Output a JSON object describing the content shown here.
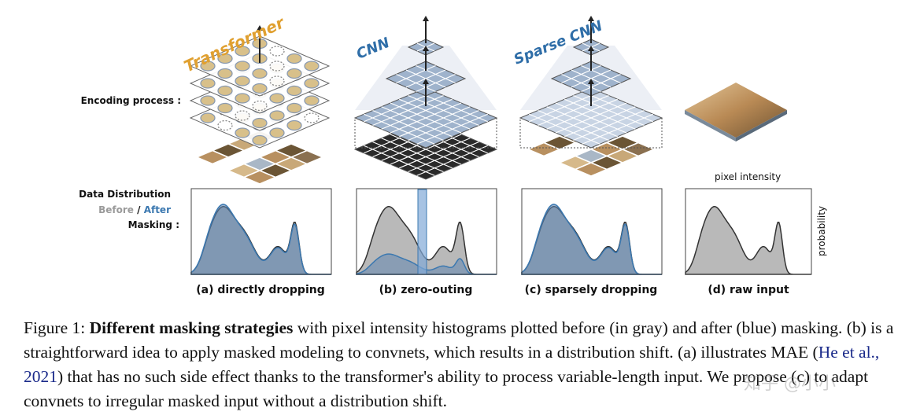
{
  "labels": {
    "encoding_process": "Encoding process :",
    "data_distribution": "Data Distribution",
    "before": "Before",
    "slash": " / ",
    "after": "After",
    "masking": "Masking :",
    "pixel_intensity": "pixel intensity",
    "probability": "probability"
  },
  "models": {
    "transformer": "Transformer",
    "cnn": "CNN",
    "sparse_cnn": "Sparse CNN"
  },
  "panels": [
    "(a) directly dropping",
    "(b) zero-outing",
    "(c) sparsely dropping",
    "(d) raw input"
  ],
  "caption": {
    "figure": "Figure 1: ",
    "bold": "Different masking strategies",
    "t1": " with pixel intensity histograms plotted before (in gray) and after (blue) masking. (b) is a straightforward idea to apply masked modeling to convnets, which results in a distribution shift. (a) illustrates MAE (",
    "cite": "He et al., 2021",
    "t2": ") that has no such side effect thanks to the transformer's ability to process variable-length input. We propose (c) to adapt convnets to irregular masked input without a distribution shift."
  },
  "watermark": "知乎 @小小",
  "colors": {
    "before": "#9a9a9a",
    "after": "#3b78b0",
    "transformer": "#e0a030",
    "cnn": "#2f6ea8"
  }
}
